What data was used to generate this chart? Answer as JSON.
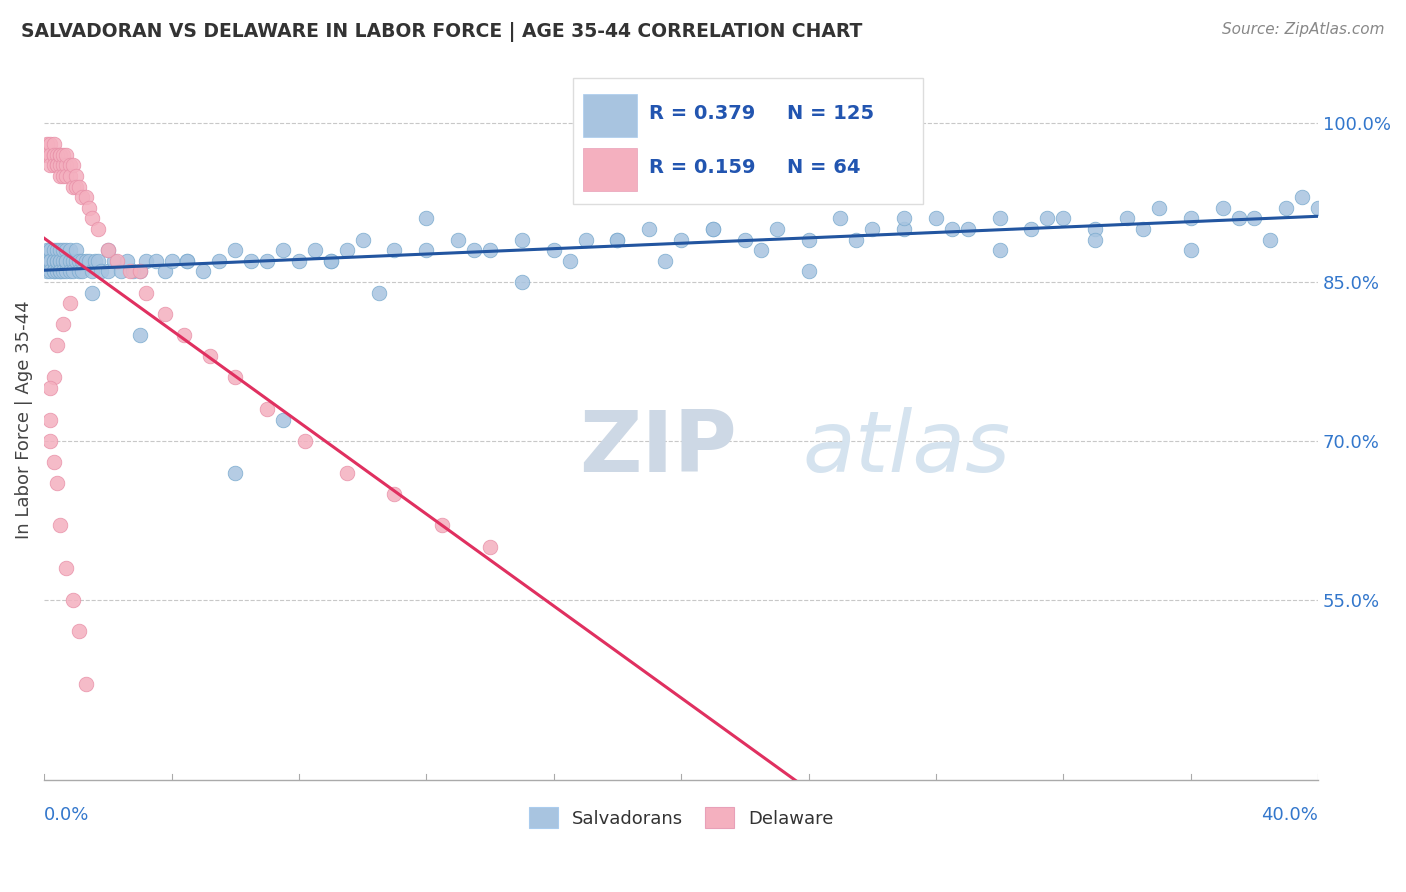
{
  "title": "SALVADORAN VS DELAWARE IN LABOR FORCE | AGE 35-44 CORRELATION CHART",
  "source": "Source: ZipAtlas.com",
  "ylabel": "In Labor Force | Age 35-44",
  "xlim": [
    0.0,
    0.4
  ],
  "ylim": [
    0.38,
    1.06
  ],
  "y_ticks": [
    0.55,
    0.7,
    0.85,
    1.0
  ],
  "y_tick_labels": [
    "55.0%",
    "70.0%",
    "85.0%",
    "100.0%"
  ],
  "blue_color": "#a8c4e0",
  "blue_edge": "#7aaace",
  "pink_color": "#f4b0bf",
  "pink_edge": "#e890a8",
  "blue_line_color": "#2255a0",
  "pink_line_color": "#e03060",
  "dashed_color": "#c8c8c8",
  "grid_color": "#c8c8c8",
  "background_color": "#ffffff",
  "watermark_zip": "ZIP",
  "watermark_atlas": "atlas",
  "watermark_color_zip": "#d0dce8",
  "watermark_color_atlas": "#c8d8e8",
  "salvadoran_x": [
    0.001,
    0.001,
    0.001,
    0.002,
    0.002,
    0.002,
    0.002,
    0.003,
    0.003,
    0.003,
    0.003,
    0.003,
    0.004,
    0.004,
    0.004,
    0.004,
    0.005,
    0.005,
    0.005,
    0.005,
    0.005,
    0.006,
    0.006,
    0.006,
    0.007,
    0.007,
    0.007,
    0.007,
    0.008,
    0.008,
    0.008,
    0.009,
    0.009,
    0.01,
    0.01,
    0.011,
    0.011,
    0.012,
    0.012,
    0.013,
    0.014,
    0.015,
    0.016,
    0.017,
    0.018,
    0.02,
    0.022,
    0.024,
    0.026,
    0.028,
    0.03,
    0.032,
    0.035,
    0.038,
    0.04,
    0.045,
    0.05,
    0.055,
    0.06,
    0.065,
    0.07,
    0.075,
    0.08,
    0.085,
    0.09,
    0.095,
    0.1,
    0.11,
    0.12,
    0.13,
    0.14,
    0.15,
    0.16,
    0.17,
    0.18,
    0.19,
    0.2,
    0.21,
    0.22,
    0.23,
    0.24,
    0.25,
    0.26,
    0.27,
    0.28,
    0.29,
    0.3,
    0.31,
    0.32,
    0.33,
    0.34,
    0.35,
    0.36,
    0.37,
    0.38,
    0.39,
    0.395,
    0.4,
    0.385,
    0.375,
    0.36,
    0.345,
    0.33,
    0.315,
    0.3,
    0.285,
    0.27,
    0.255,
    0.24,
    0.225,
    0.21,
    0.195,
    0.18,
    0.165,
    0.15,
    0.135,
    0.12,
    0.105,
    0.09,
    0.075,
    0.06,
    0.045,
    0.03,
    0.02,
    0.015
  ],
  "salvadoran_y": [
    0.88,
    0.87,
    0.86,
    0.88,
    0.87,
    0.87,
    0.86,
    0.88,
    0.87,
    0.86,
    0.87,
    0.86,
    0.87,
    0.88,
    0.86,
    0.87,
    0.87,
    0.86,
    0.88,
    0.87,
    0.86,
    0.87,
    0.86,
    0.88,
    0.87,
    0.88,
    0.86,
    0.87,
    0.87,
    0.86,
    0.88,
    0.87,
    0.86,
    0.87,
    0.88,
    0.87,
    0.86,
    0.87,
    0.86,
    0.87,
    0.87,
    0.86,
    0.87,
    0.87,
    0.86,
    0.86,
    0.87,
    0.86,
    0.87,
    0.86,
    0.86,
    0.87,
    0.87,
    0.86,
    0.87,
    0.87,
    0.86,
    0.87,
    0.88,
    0.87,
    0.87,
    0.88,
    0.87,
    0.88,
    0.87,
    0.88,
    0.89,
    0.88,
    0.88,
    0.89,
    0.88,
    0.89,
    0.88,
    0.89,
    0.89,
    0.9,
    0.89,
    0.9,
    0.89,
    0.9,
    0.89,
    0.91,
    0.9,
    0.9,
    0.91,
    0.9,
    0.91,
    0.9,
    0.91,
    0.9,
    0.91,
    0.92,
    0.91,
    0.92,
    0.91,
    0.92,
    0.93,
    0.92,
    0.89,
    0.91,
    0.88,
    0.9,
    0.89,
    0.91,
    0.88,
    0.9,
    0.91,
    0.89,
    0.86,
    0.88,
    0.9,
    0.87,
    0.89,
    0.87,
    0.85,
    0.88,
    0.91,
    0.84,
    0.87,
    0.72,
    0.67,
    0.87,
    0.8,
    0.88,
    0.84
  ],
  "delaware_x": [
    0.001,
    0.001,
    0.001,
    0.002,
    0.002,
    0.002,
    0.003,
    0.003,
    0.003,
    0.003,
    0.004,
    0.004,
    0.004,
    0.005,
    0.005,
    0.005,
    0.005,
    0.006,
    0.006,
    0.006,
    0.007,
    0.007,
    0.007,
    0.008,
    0.008,
    0.009,
    0.009,
    0.01,
    0.01,
    0.011,
    0.012,
    0.013,
    0.014,
    0.015,
    0.017,
    0.02,
    0.023,
    0.027,
    0.032,
    0.038,
    0.044,
    0.052,
    0.06,
    0.07,
    0.082,
    0.095,
    0.11,
    0.125,
    0.14,
    0.03,
    0.008,
    0.006,
    0.004,
    0.003,
    0.002,
    0.002,
    0.002,
    0.003,
    0.004,
    0.005,
    0.007,
    0.009,
    0.011,
    0.013
  ],
  "delaware_y": [
    0.97,
    0.98,
    0.97,
    0.98,
    0.97,
    0.96,
    0.97,
    0.98,
    0.97,
    0.96,
    0.97,
    0.96,
    0.96,
    0.97,
    0.96,
    0.95,
    0.97,
    0.96,
    0.97,
    0.95,
    0.96,
    0.95,
    0.97,
    0.96,
    0.95,
    0.96,
    0.94,
    0.95,
    0.94,
    0.94,
    0.93,
    0.93,
    0.92,
    0.91,
    0.9,
    0.88,
    0.87,
    0.86,
    0.84,
    0.82,
    0.8,
    0.78,
    0.76,
    0.73,
    0.7,
    0.67,
    0.65,
    0.62,
    0.6,
    0.86,
    0.83,
    0.81,
    0.79,
    0.76,
    0.75,
    0.72,
    0.7,
    0.68,
    0.66,
    0.62,
    0.58,
    0.55,
    0.52,
    0.47
  ],
  "legend_items": [
    {
      "label": "R = 0.379",
      "n_label": "N = 125",
      "color": "#a8c4e0"
    },
    {
      "label": "R = 0.159",
      "n_label": "N = 64",
      "color": "#f4b0bf"
    }
  ]
}
